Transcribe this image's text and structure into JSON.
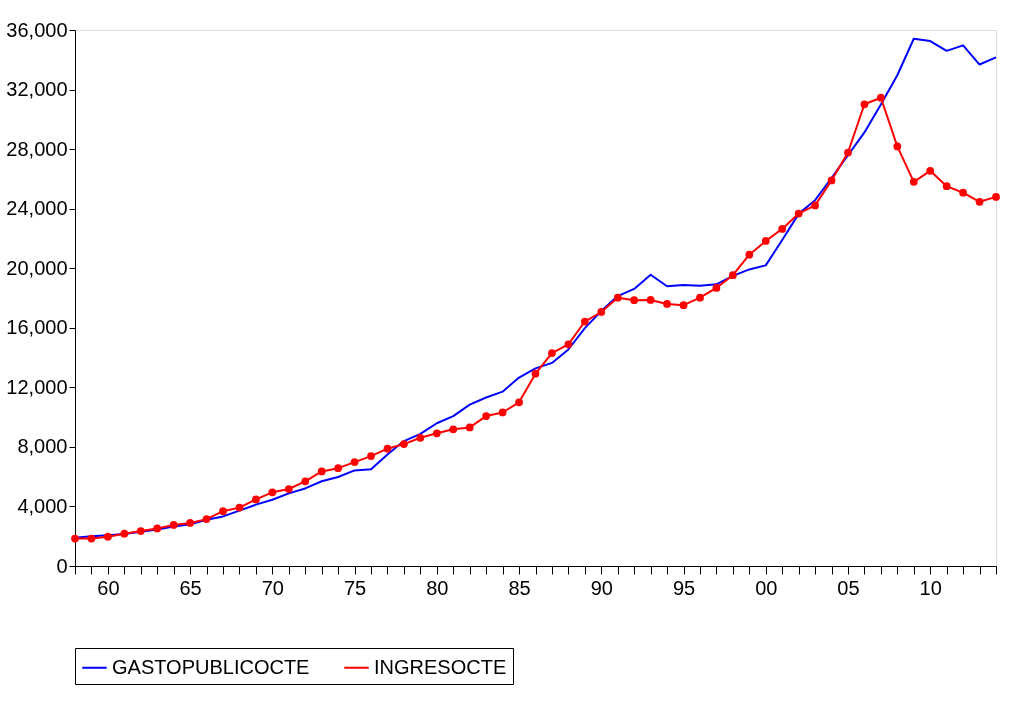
{
  "chart_data": {
    "type": "line",
    "x": [
      1958,
      1959,
      1960,
      1961,
      1962,
      1963,
      1964,
      1965,
      1966,
      1967,
      1968,
      1969,
      1970,
      1971,
      1972,
      1973,
      1974,
      1975,
      1976,
      1977,
      1978,
      1979,
      1980,
      1981,
      1982,
      1983,
      1984,
      1985,
      1986,
      1987,
      1988,
      1989,
      1990,
      1991,
      1992,
      1993,
      1994,
      1995,
      1996,
      1997,
      1998,
      1999,
      2000,
      2001,
      2002,
      2003,
      2004,
      2005,
      2006,
      2007,
      2008,
      2009,
      2010,
      2011,
      2012,
      2013,
      2014
    ],
    "series": [
      {
        "name": "GASTOPUBLICOCTE",
        "color": "#0000ff",
        "marker": "none",
        "values": [
          1900,
          2000,
          2070,
          2150,
          2300,
          2450,
          2650,
          2800,
          3100,
          3330,
          3720,
          4120,
          4450,
          4880,
          5210,
          5690,
          5980,
          6420,
          6500,
          7490,
          8390,
          8870,
          9590,
          10070,
          10840,
          11320,
          11710,
          12660,
          13270,
          13640,
          14540,
          15980,
          17120,
          18130,
          18610,
          19560,
          18790,
          18870,
          18830,
          18920,
          19490,
          19920,
          20190,
          21900,
          23650,
          24570,
          26060,
          27590,
          29120,
          30990,
          32960,
          35410,
          35260,
          34600,
          34970,
          33680,
          34160
        ]
      },
      {
        "name": "INGRESOCTE",
        "color": "#ff0000",
        "marker": "circle",
        "values": [
          1840,
          1840,
          1970,
          2170,
          2350,
          2520,
          2760,
          2890,
          3150,
          3680,
          3920,
          4470,
          4950,
          5170,
          5690,
          6350,
          6570,
          6980,
          7380,
          7880,
          8190,
          8610,
          8910,
          9180,
          9310,
          10070,
          10310,
          10990,
          12920,
          14300,
          14890,
          16420,
          17060,
          18020,
          17850,
          17870,
          17600,
          17520,
          18020,
          18680,
          19530,
          20910,
          21830,
          22640,
          23670,
          24220,
          25900,
          27770,
          31010,
          31450,
          28180,
          25800,
          26540,
          25510,
          25070,
          24460,
          24790
        ]
      }
    ],
    "xlim": [
      1958,
      2014
    ],
    "xticks": [
      {
        "value": 1958,
        "label": null
      },
      {
        "value": 1959,
        "label": null
      },
      {
        "value": 1960,
        "label": "60"
      },
      {
        "value": 1961,
        "label": null
      },
      {
        "value": 1962,
        "label": null
      },
      {
        "value": 1963,
        "label": null
      },
      {
        "value": 1964,
        "label": null
      },
      {
        "value": 1965,
        "label": "65"
      },
      {
        "value": 1966,
        "label": null
      },
      {
        "value": 1967,
        "label": null
      },
      {
        "value": 1968,
        "label": null
      },
      {
        "value": 1969,
        "label": null
      },
      {
        "value": 1970,
        "label": "70"
      },
      {
        "value": 1971,
        "label": null
      },
      {
        "value": 1972,
        "label": null
      },
      {
        "value": 1973,
        "label": null
      },
      {
        "value": 1974,
        "label": null
      },
      {
        "value": 1975,
        "label": "75"
      },
      {
        "value": 1976,
        "label": null
      },
      {
        "value": 1977,
        "label": null
      },
      {
        "value": 1978,
        "label": null
      },
      {
        "value": 1979,
        "label": null
      },
      {
        "value": 1980,
        "label": "80"
      },
      {
        "value": 1981,
        "label": null
      },
      {
        "value": 1982,
        "label": null
      },
      {
        "value": 1983,
        "label": null
      },
      {
        "value": 1984,
        "label": null
      },
      {
        "value": 1985,
        "label": "85"
      },
      {
        "value": 1986,
        "label": null
      },
      {
        "value": 1987,
        "label": null
      },
      {
        "value": 1988,
        "label": null
      },
      {
        "value": 1989,
        "label": null
      },
      {
        "value": 1990,
        "label": "90"
      },
      {
        "value": 1991,
        "label": null
      },
      {
        "value": 1992,
        "label": null
      },
      {
        "value": 1993,
        "label": null
      },
      {
        "value": 1994,
        "label": null
      },
      {
        "value": 1995,
        "label": "95"
      },
      {
        "value": 1996,
        "label": null
      },
      {
        "value": 1997,
        "label": null
      },
      {
        "value": 1998,
        "label": null
      },
      {
        "value": 1999,
        "label": null
      },
      {
        "value": 2000,
        "label": "00"
      },
      {
        "value": 2001,
        "label": null
      },
      {
        "value": 2002,
        "label": null
      },
      {
        "value": 2003,
        "label": null
      },
      {
        "value": 2004,
        "label": null
      },
      {
        "value": 2005,
        "label": "05"
      },
      {
        "value": 2006,
        "label": null
      },
      {
        "value": 2007,
        "label": null
      },
      {
        "value": 2008,
        "label": null
      },
      {
        "value": 2009,
        "label": null
      },
      {
        "value": 2010,
        "label": "10"
      },
      {
        "value": 2011,
        "label": null
      },
      {
        "value": 2012,
        "label": null
      },
      {
        "value": 2013,
        "label": null
      },
      {
        "value": 2014,
        "label": null
      }
    ],
    "ylim": [
      0,
      36000
    ],
    "yticks": [
      0,
      {
        "value": 4000,
        "label": "4,000"
      },
      {
        "value": 8000,
        "label": "8,000"
      },
      {
        "value": 12000,
        "label": "12,000"
      },
      {
        "value": 16000,
        "label": "16,000"
      },
      {
        "value": 20000,
        "label": "20,000"
      },
      {
        "value": 24000,
        "label": "24,000"
      },
      {
        "value": 28000,
        "label": "28,000"
      },
      {
        "value": 32000,
        "label": "32,000"
      },
      {
        "value": 36000,
        "label": "36,000"
      }
    ],
    "grid": false,
    "legend": "bottom"
  }
}
